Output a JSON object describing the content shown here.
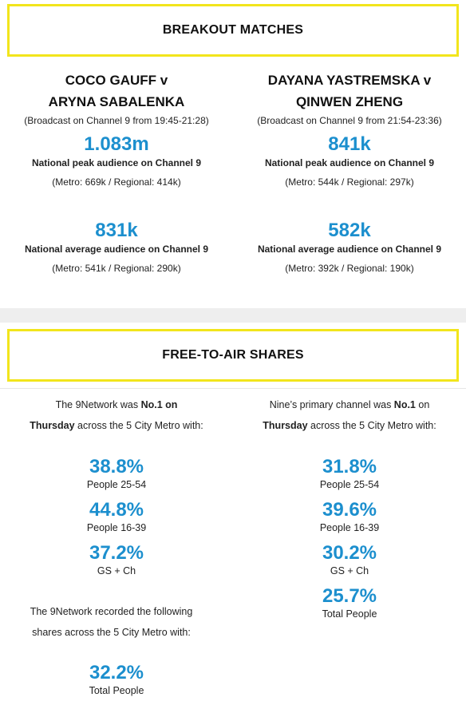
{
  "breakout": {
    "heading": "BREAKOUT MATCHES",
    "matches": [
      {
        "title_line1": "COCO GAUFF v",
        "title_line2": "ARYNA SABALENKA",
        "broadcast": "(Broadcast on Channel 9 from 19:45-21:28)",
        "peak_value": "1.083m",
        "peak_label": "National peak audience on Channel 9",
        "peak_split": "(Metro: 669k / Regional: 414k)",
        "avg_value": "831k",
        "avg_label": "National average audience on Channel 9",
        "avg_split": "(Metro: 541k / Regional: 290k)"
      },
      {
        "title_line1": "DAYANA YASTREMSKA v",
        "title_line2": "QINWEN ZHENG",
        "broadcast": "(Broadcast on Channel 9 from 21:54-23:36)",
        "peak_value": "841k",
        "peak_label": "National peak audience on Channel 9",
        "peak_split": "(Metro: 544k / Regional: 297k)",
        "avg_value": "582k",
        "avg_label": "National average audience on Channel 9",
        "avg_split": "(Metro: 392k / Regional: 190k)"
      }
    ]
  },
  "fta": {
    "heading": "FREE-TO-AIR SHARES",
    "left": {
      "intro_pre": "The 9Network was ",
      "intro_bold1": "No.1 on",
      "intro_bold2": "Thursday",
      "intro_post": " across the 5 City Metro with:",
      "metrics": [
        {
          "value": "38.8%",
          "label": "People 25-54"
        },
        {
          "value": "44.8%",
          "label": "People 16-39"
        },
        {
          "value": "37.2%",
          "label": "GS + Ch"
        }
      ],
      "recorded_line1": "The 9Network recorded the following",
      "recorded_line2": "shares across the 5 City Metro with:",
      "total": {
        "value": "32.2%",
        "label": "Total People"
      }
    },
    "right": {
      "intro_pre": "Nine’s primary channel was ",
      "intro_bold1": "No.1",
      "intro_mid": " on",
      "intro_bold2": "Thursday",
      "intro_post": " across the 5 City Metro with:",
      "metrics": [
        {
          "value": "31.8%",
          "label": "People 25-54"
        },
        {
          "value": "39.6%",
          "label": "People 16-39"
        },
        {
          "value": "30.2%",
          "label": "GS + Ch"
        },
        {
          "value": "25.7%",
          "label": "Total People"
        }
      ]
    }
  }
}
